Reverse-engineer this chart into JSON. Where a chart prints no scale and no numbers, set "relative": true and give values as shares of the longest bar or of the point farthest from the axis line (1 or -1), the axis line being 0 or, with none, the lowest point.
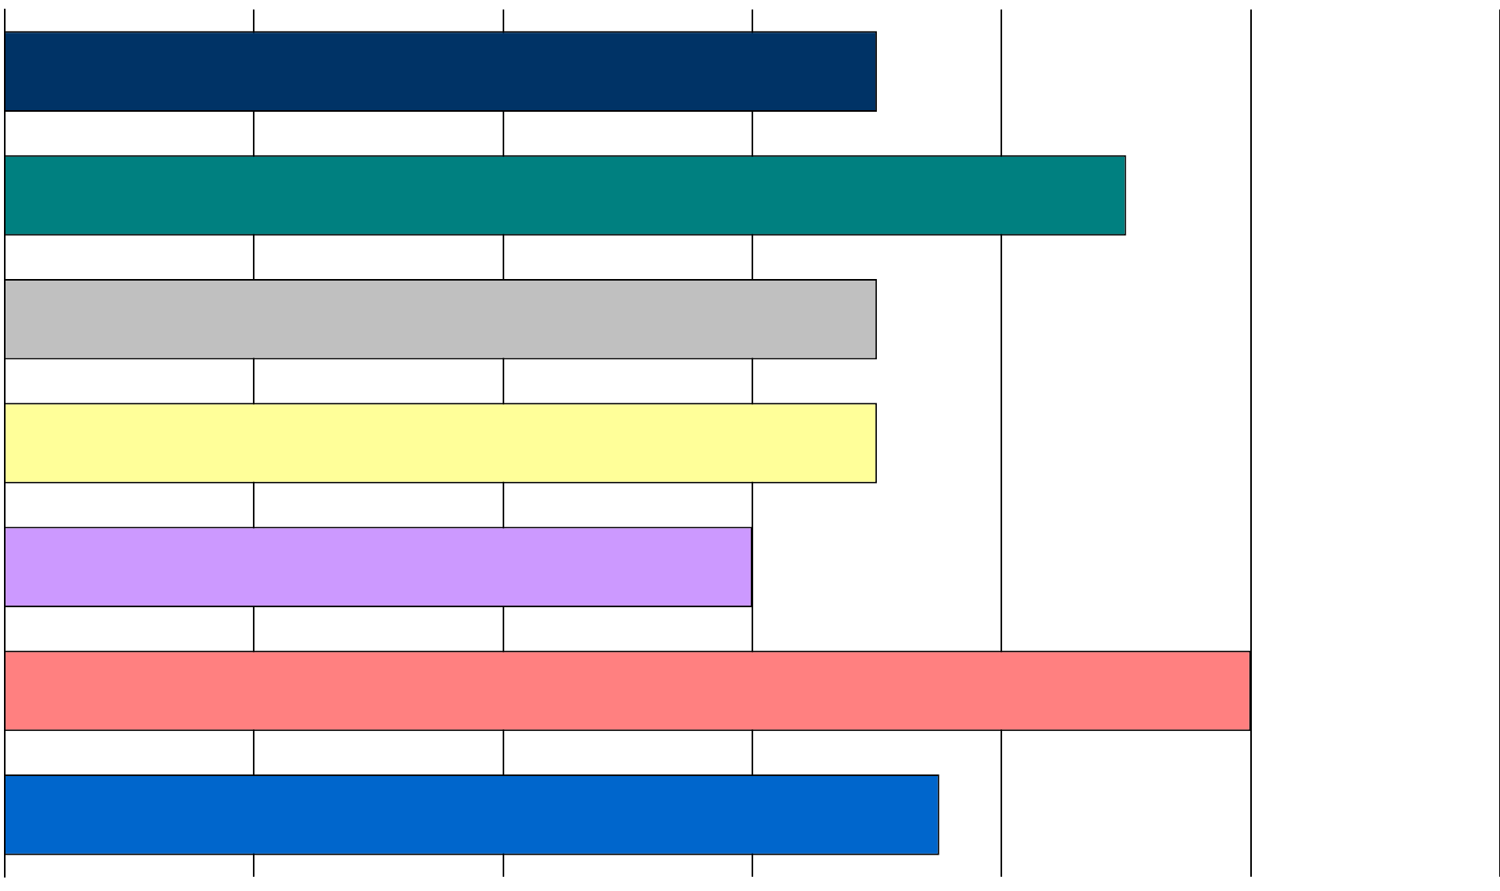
{
  "chart_data": {
    "type": "bar",
    "orientation": "horizontal",
    "relative": true,
    "categories": [
      null,
      null,
      null,
      null,
      null,
      null,
      null
    ],
    "values": [
      0.7,
      0.9,
      0.7,
      0.7,
      0.6,
      1,
      0.75
    ],
    "colors": [
      "#003366",
      "#008080",
      "#c0c0c0",
      "#ffff99",
      "#cc99ff",
      "#ff8080",
      "#0066cc"
    ],
    "grid": "x"
  }
}
